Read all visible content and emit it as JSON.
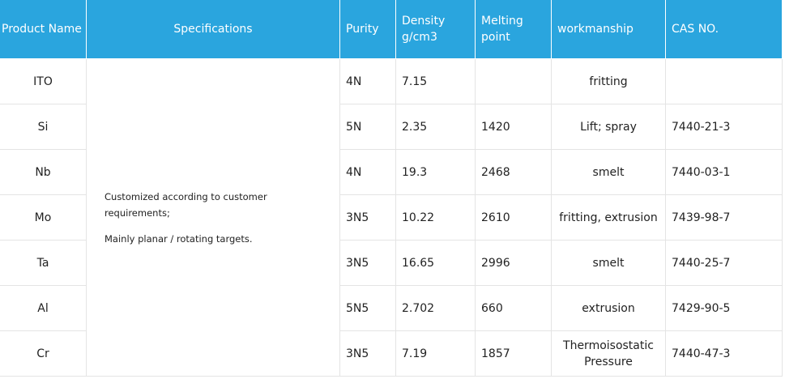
{
  "table": {
    "headers": [
      "Product Name",
      "Specifications",
      "Purity",
      [
        "Density",
        "g/cm3"
      ],
      "Melting point",
      "workmanship",
      "CAS NO."
    ],
    "specifications": [
      "Customized according to customer requirements;",
      "Mainly planar / rotating targets."
    ],
    "rows": [
      [
        "ITO",
        "4N",
        "7.15",
        null,
        "fritting",
        null
      ],
      [
        "Si",
        "5N",
        "2.35",
        "1420",
        "Lift; spray",
        "7440-21-3"
      ],
      [
        "Nb",
        "4N",
        "19.3",
        "2468",
        "smelt",
        "7440-03-1"
      ],
      [
        "Mo",
        "3N5",
        "10.22",
        "2610",
        "fritting, extrusion",
        "7439-98-7"
      ],
      [
        "Ta",
        "3N5",
        "16.65",
        "2996",
        "smelt",
        "7440-25-7"
      ],
      [
        "Al",
        "5N5",
        "2.702",
        "660",
        "extrusion",
        "7429-90-5"
      ],
      [
        "Cr",
        "3N5",
        "7.19",
        "1857",
        "Thermoisostatic Pressure",
        "7440-47-3"
      ]
    ]
  }
}
